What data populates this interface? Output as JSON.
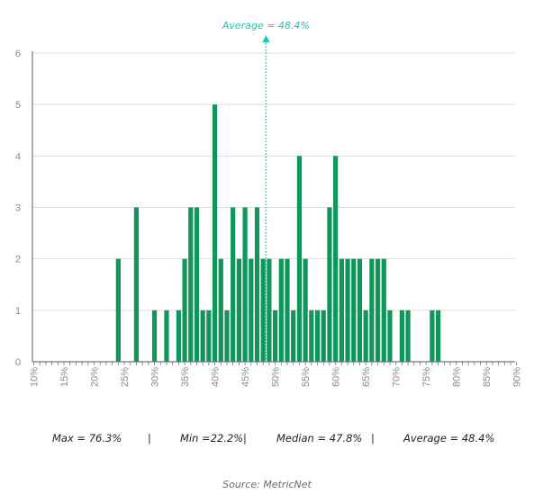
{
  "chart_data": {
    "type": "bar",
    "x": [
      24,
      27,
      30,
      32,
      34,
      35,
      36,
      37,
      38,
      39,
      40,
      41,
      42,
      43,
      44,
      45,
      46,
      47,
      48,
      49,
      50,
      51,
      52,
      53,
      54,
      55,
      56,
      57,
      58,
      59,
      60,
      61,
      62,
      63,
      64,
      65,
      66,
      67,
      68,
      69,
      71,
      72,
      76,
      77
    ],
    "values": [
      2,
      3,
      1,
      1,
      1,
      2,
      3,
      3,
      1,
      1,
      5,
      2,
      1,
      3,
      2,
      3,
      2,
      3,
      2,
      2,
      1,
      2,
      2,
      1,
      4,
      2,
      1,
      1,
      1,
      3,
      4,
      2,
      2,
      2,
      2,
      1,
      2,
      2,
      2,
      1,
      1,
      1,
      1,
      1
    ],
    "xlim": [
      10,
      90
    ],
    "ylim": [
      0,
      6
    ],
    "y_ticks": [
      0,
      1,
      2,
      3,
      4,
      5,
      6
    ],
    "x_tick_labels": [
      "10%",
      "15%",
      "20%",
      "25%",
      "30%",
      "35%",
      "40%",
      "45%",
      "50%",
      "55%",
      "60%",
      "65%",
      "70%",
      "75%",
      "80%",
      "85%",
      "90%"
    ],
    "grid": "horizontal",
    "average_line": {
      "value": 48.4,
      "label": "Average = 48.4%"
    },
    "colors": {
      "bar": "#10965a",
      "average": "#1ec8b4",
      "grid": "#dcdcdc",
      "axis": "#777777",
      "tick_label": "#8a8a8a"
    }
  },
  "stats": {
    "max": "Max = 76.3%",
    "sep1": "|",
    "min": "Min =22.2%",
    "sep2": "|",
    "median": "Median = 47.8%",
    "sep3": "|",
    "average": "Average = 48.4%"
  },
  "source": "Source: MetricNet"
}
